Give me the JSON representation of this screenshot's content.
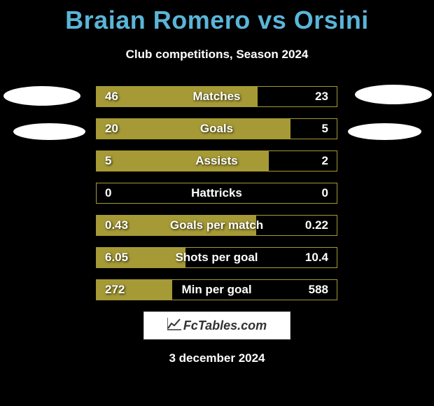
{
  "title": "Braian Romero vs Orsini",
  "subtitle": "Club competitions, Season 2024",
  "date": "3 december 2024",
  "watermark": "FcTables.com",
  "colors": {
    "background": "#000000",
    "title_color": "#5ab5d8",
    "text_color": "#ffffff",
    "bar_color": "#a59a35"
  },
  "stats": [
    {
      "label": "Matches",
      "left_value": "46",
      "right_value": "23",
      "left_width": 230,
      "right_width": 0,
      "type": "left_dominant"
    },
    {
      "label": "Goals",
      "left_value": "20",
      "right_value": "5",
      "left_width": 277,
      "right_width": 0,
      "type": "left_dominant"
    },
    {
      "label": "Assists",
      "left_value": "5",
      "right_value": "2",
      "left_width": 246,
      "right_width": 0,
      "type": "left_dominant"
    },
    {
      "label": "Hattricks",
      "left_value": "0",
      "right_value": "0",
      "left_width": 0,
      "right_width": 0,
      "type": "empty"
    },
    {
      "label": "Goals per match",
      "left_value": "0.43",
      "right_value": "0.22",
      "left_width": 228,
      "right_width": 0,
      "type": "left_dominant"
    },
    {
      "label": "Shots per goal",
      "left_value": "6.05",
      "right_value": "10.4",
      "left_width": 127,
      "right_width": 0,
      "type": "left_partial"
    },
    {
      "label": "Min per goal",
      "left_value": "272",
      "right_value": "588",
      "left_width": 108,
      "right_width": 0,
      "type": "left_partial"
    }
  ]
}
